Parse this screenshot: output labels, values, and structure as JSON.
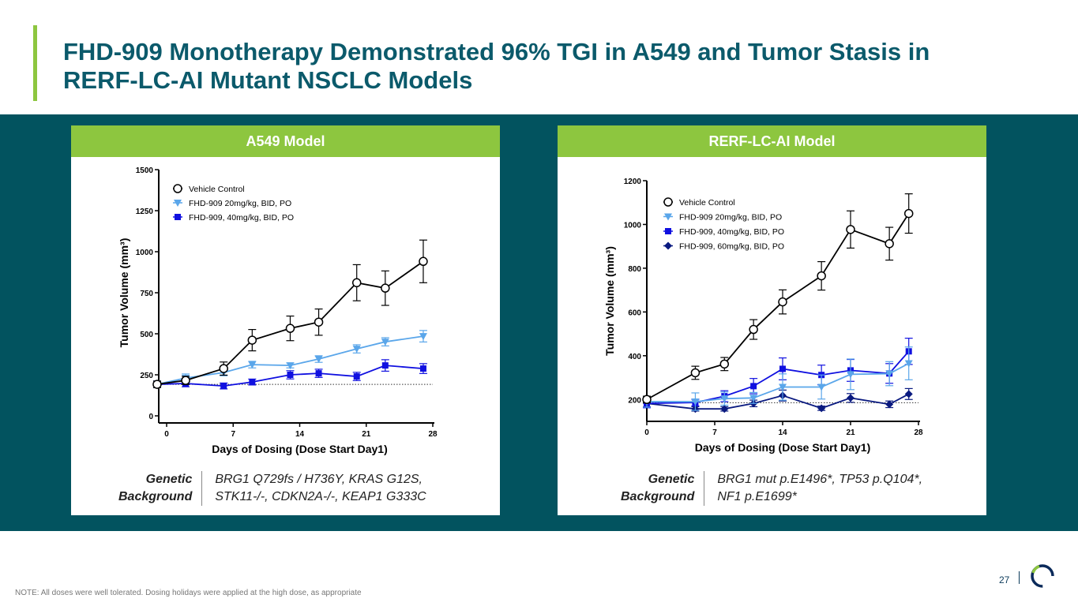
{
  "title": "FHD-909 Monotherapy Demonstrated 96% TGI in A549 and Tumor Stasis in RERF-LC-AI Mutant NSCLC Models",
  "colors": {
    "title": "#0b5a6b",
    "accent_green": "#8dc63f",
    "band": "#02535f",
    "vehicle": "#000000",
    "dose20": "#5aa6ea",
    "dose40": "#1010e0",
    "dose60": "#0a1a80"
  },
  "panels": [
    {
      "header": "A549 Model",
      "genetic_label_line1": "Genetic",
      "genetic_label_line2": "Background",
      "genetic_value_line1": "BRG1 Q729fs / H736Y, KRAS G12S,",
      "genetic_value_line2": "STK11-/-, CDKN2A-/-, KEAP1 G333C"
    },
    {
      "header": "RERF-LC-AI Model",
      "genetic_label_line1": "Genetic",
      "genetic_label_line2": "Background",
      "genetic_value_line1": "BRG1 mut p.E1496*, TP53 p.Q104*,",
      "genetic_value_line2": "NF1 p.E1699*"
    }
  ],
  "chart_data": [
    {
      "type": "line",
      "title": "A549 Model",
      "xlabel": "Days of Dosing (Dose Start Day1)",
      "ylabel": "Tumor Volume (mm³)",
      "xlim": [
        -1,
        28
      ],
      "ylim": [
        0,
        1500
      ],
      "xticks": [
        0,
        7,
        14,
        21,
        28
      ],
      "yticks": [
        0,
        250,
        500,
        750,
        1000,
        1250,
        1500
      ],
      "baseline": 192,
      "legend_position": "top-left",
      "x": [
        -1,
        2,
        6,
        9,
        13,
        16,
        20,
        23,
        27
      ],
      "series": [
        {
          "name": "Vehicle Control",
          "marker": "open-circle",
          "color": "#000000",
          "values": [
            192,
            216,
            288,
            461,
            533,
            571,
            811,
            778,
            941
          ],
          "errors": [
            20,
            25,
            40,
            65,
            75,
            80,
            110,
            105,
            130
          ]
        },
        {
          "name": "FHD-909 20mg/kg, BID, PO",
          "marker": "triangle-down",
          "color": "#5aa6ea",
          "values": [
            192,
            230,
            264,
            312,
            307,
            346,
            408,
            451,
            485
          ],
          "errors": [
            20,
            25,
            20,
            20,
            15,
            20,
            25,
            25,
            35
          ]
        },
        {
          "name": "FHD-909, 40mg/kg, BID, PO",
          "marker": "square",
          "color": "#1010e0",
          "values": [
            192,
            197,
            182,
            206,
            250,
            259,
            240,
            307,
            288
          ],
          "errors": [
            20,
            20,
            18,
            18,
            25,
            25,
            25,
            35,
            30
          ]
        }
      ]
    },
    {
      "type": "line",
      "title": "RERF-LC-AI Model",
      "xlabel": "Days of Dosing (Dose Start Day1)",
      "ylabel": "Tumor Volume (mm³)",
      "xlim": [
        0,
        28
      ],
      "ylim": [
        100,
        1200
      ],
      "xticks": [
        0,
        7,
        14,
        21,
        28
      ],
      "yticks": [
        200,
        400,
        600,
        800,
        1000,
        1200
      ],
      "baseline": 185,
      "legend_position": "top-left",
      "x": [
        0,
        5,
        8,
        11,
        14,
        18,
        21,
        25,
        27
      ],
      "series": [
        {
          "name": "Vehicle Control",
          "marker": "open-circle",
          "color": "#000000",
          "values": [
            200,
            322,
            362,
            520,
            646,
            765,
            977,
            912,
            1050
          ],
          "errors": [
            15,
            30,
            30,
            45,
            55,
            65,
            85,
            75,
            90
          ]
        },
        {
          "name": "FHD-909 20mg/kg, BID, PO",
          "marker": "triangle-down",
          "color": "#5aa6ea",
          "values": [
            190,
            190,
            204,
            207,
            257,
            257,
            315,
            318,
            365
          ],
          "errors": [
            25,
            40,
            30,
            25,
            60,
            55,
            70,
            55,
            75
          ]
        },
        {
          "name": "FHD-909, 40mg/kg, BID, PO",
          "marker": "square",
          "color": "#1010e0",
          "values": [
            182,
            186,
            215,
            261,
            340,
            312,
            333,
            319,
            420
          ],
          "errors": [
            20,
            15,
            25,
            35,
            50,
            45,
            50,
            45,
            60
          ]
        },
        {
          "name": "FHD-909, 60mg/kg, BID, PO",
          "marker": "diamond",
          "color": "#0a1a80",
          "values": [
            182,
            157,
            157,
            182,
            218,
            160,
            207,
            178,
            225
          ],
          "errors": [
            15,
            10,
            10,
            15,
            25,
            10,
            20,
            15,
            25
          ]
        }
      ]
    }
  ],
  "footer": {
    "note": "NOTE: All doses were well tolerated. Dosing holidays were applied at the high dose, as appropriate",
    "page_number": "27"
  }
}
